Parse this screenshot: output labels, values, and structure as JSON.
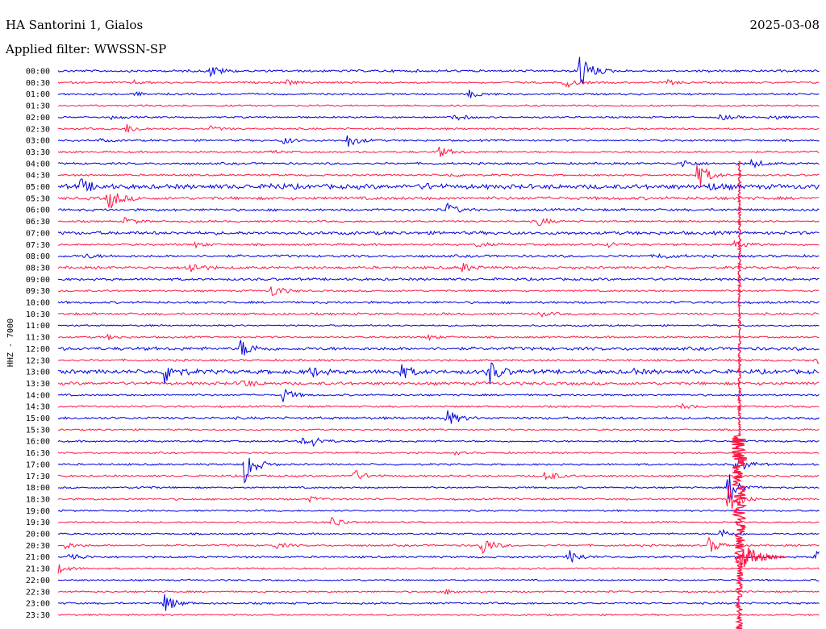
{
  "header": {
    "station": "HA Santorini 1, Gialos",
    "date": "2025-03-08",
    "filter": "Applied filter: WWSSN-SP"
  },
  "colors": {
    "blue": "#0000e0",
    "red": "#ff1744"
  },
  "chart_data": {
    "type": "helicorder",
    "ylabel": "HHZ - 7000",
    "rows": [
      {
        "time": "00:00",
        "color": "blue",
        "noise": 1.2,
        "events": [
          {
            "t": 0.2,
            "a": 8
          },
          {
            "t": 0.685,
            "a": 26
          }
        ]
      },
      {
        "time": "00:30",
        "color": "red",
        "noise": 1.0,
        "events": [
          {
            "t": 0.1,
            "a": 2
          },
          {
            "t": 0.3,
            "a": 3
          },
          {
            "t": 0.665,
            "a": 7
          },
          {
            "t": 0.8,
            "a": 3
          }
        ]
      },
      {
        "time": "01:00",
        "color": "blue",
        "noise": 1.0,
        "events": [
          {
            "t": 0.1,
            "a": 2
          },
          {
            "t": 0.54,
            "a": 5
          }
        ]
      },
      {
        "time": "01:30",
        "color": "red",
        "noise": 0.9,
        "events": []
      },
      {
        "time": "02:00",
        "color": "blue",
        "noise": 0.9,
        "events": [
          {
            "t": 0.07,
            "a": 2
          },
          {
            "t": 0.52,
            "a": 2
          },
          {
            "t": 0.52,
            "a": 3
          },
          {
            "t": 0.87,
            "a": 4
          },
          {
            "t": 0.935,
            "a": 4
          }
        ]
      },
      {
        "time": "02:30",
        "color": "red",
        "noise": 1.0,
        "events": [
          {
            "t": 0.09,
            "a": 6
          },
          {
            "t": 0.2,
            "a": 3
          }
        ]
      },
      {
        "time": "03:00",
        "color": "blue",
        "noise": 1.0,
        "events": [
          {
            "t": 0.055,
            "a": 2
          },
          {
            "t": 0.295,
            "a": 5
          },
          {
            "t": 0.38,
            "a": 9
          }
        ]
      },
      {
        "time": "03:30",
        "color": "red",
        "noise": 1.0,
        "events": [
          {
            "t": 0.5,
            "a": 7
          },
          {
            "t": 0.28,
            "a": 2
          }
        ]
      },
      {
        "time": "04:00",
        "color": "blue",
        "noise": 1.1,
        "events": [
          {
            "t": 0.82,
            "a": 5
          },
          {
            "t": 0.91,
            "a": 6
          }
        ]
      },
      {
        "time": "04:30",
        "color": "red",
        "noise": 1.0,
        "events": [
          {
            "t": 0.515,
            "a": 2
          },
          {
            "t": 0.84,
            "a": 18
          }
        ]
      },
      {
        "time": "05:00",
        "color": "blue",
        "noise": 2.4,
        "events": [
          {
            "t": 0.03,
            "a": 9
          },
          {
            "t": 0.28,
            "a": 3
          },
          {
            "t": 0.48,
            "a": 3
          },
          {
            "t": 0.855,
            "a": 4
          }
        ]
      },
      {
        "time": "05:30",
        "color": "red",
        "noise": 1.6,
        "events": [
          {
            "t": 0.065,
            "a": 16
          }
        ]
      },
      {
        "time": "06:00",
        "color": "blue",
        "noise": 1.3,
        "events": [
          {
            "t": 0.51,
            "a": 8
          }
        ]
      },
      {
        "time": "06:30",
        "color": "red",
        "noise": 1.0,
        "events": [
          {
            "t": 0.088,
            "a": 5
          },
          {
            "t": 0.63,
            "a": 6
          }
        ]
      },
      {
        "time": "07:00",
        "color": "blue",
        "noise": 1.7,
        "events": []
      },
      {
        "time": "07:30",
        "color": "red",
        "noise": 1.1,
        "events": [
          {
            "t": 0.18,
            "a": 3
          },
          {
            "t": 0.55,
            "a": 3
          },
          {
            "t": 0.72,
            "a": 4
          },
          {
            "t": 0.89,
            "a": 7
          }
        ]
      },
      {
        "time": "08:00",
        "color": "blue",
        "noise": 1.3,
        "events": [
          {
            "t": 0.035,
            "a": 3
          },
          {
            "t": 0.79,
            "a": 4
          }
        ]
      },
      {
        "time": "08:30",
        "color": "red",
        "noise": 1.4,
        "events": [
          {
            "t": 0.17,
            "a": 10
          },
          {
            "t": 0.53,
            "a": 6
          }
        ]
      },
      {
        "time": "09:00",
        "color": "blue",
        "noise": 1.3,
        "events": []
      },
      {
        "time": "09:30",
        "color": "red",
        "noise": 1.0,
        "events": [
          {
            "t": 0.28,
            "a": 9
          }
        ]
      },
      {
        "time": "10:00",
        "color": "blue",
        "noise": 1.2,
        "events": []
      },
      {
        "time": "10:30",
        "color": "red",
        "noise": 1.2,
        "events": [
          {
            "t": 0.63,
            "a": 3
          }
        ]
      },
      {
        "time": "11:00",
        "color": "blue",
        "noise": 0.9,
        "events": []
      },
      {
        "time": "11:30",
        "color": "red",
        "noise": 1.0,
        "events": [
          {
            "t": 0.065,
            "a": 3
          },
          {
            "t": 0.485,
            "a": 3
          }
        ]
      },
      {
        "time": "12:00",
        "color": "blue",
        "noise": 1.7,
        "events": [
          {
            "t": 0.24,
            "a": 12
          }
        ]
      },
      {
        "time": "12:30",
        "color": "red",
        "noise": 1.1,
        "events": [
          {
            "t": 0.995,
            "a": 4
          }
        ]
      },
      {
        "time": "13:00",
        "color": "blue",
        "noise": 2.2,
        "events": [
          {
            "t": 0.14,
            "a": 16
          },
          {
            "t": 0.33,
            "a": 7
          },
          {
            "t": 0.45,
            "a": 9
          },
          {
            "t": 0.565,
            "a": 16
          },
          {
            "t": 0.75,
            "a": 3
          }
        ]
      },
      {
        "time": "13:30",
        "color": "red",
        "noise": 1.6,
        "events": [
          {
            "t": 0.24,
            "a": 6
          }
        ]
      },
      {
        "time": "14:00",
        "color": "blue",
        "noise": 1.0,
        "events": [
          {
            "t": 0.295,
            "a": 9
          }
        ]
      },
      {
        "time": "14:30",
        "color": "red",
        "noise": 1.0,
        "events": [
          {
            "t": 0.82,
            "a": 3
          }
        ]
      },
      {
        "time": "15:00",
        "color": "blue",
        "noise": 1.3,
        "events": [
          {
            "t": 0.51,
            "a": 11
          }
        ]
      },
      {
        "time": "15:30",
        "color": "red",
        "noise": 0.9,
        "events": []
      },
      {
        "time": "16:00",
        "color": "blue",
        "noise": 1.0,
        "events": [
          {
            "t": 0.32,
            "a": 4
          },
          {
            "t": 0.335,
            "a": 5
          }
        ]
      },
      {
        "time": "16:30",
        "color": "red",
        "noise": 0.9,
        "events": [
          {
            "t": 0.52,
            "a": 2
          }
        ]
      },
      {
        "time": "17:00",
        "color": "blue",
        "noise": 1.0,
        "events": [
          {
            "t": 0.245,
            "a": 24
          },
          {
            "t": 0.89,
            "a": 14
          }
        ]
      },
      {
        "time": "17:30",
        "color": "red",
        "noise": 1.0,
        "events": [
          {
            "t": 0.385,
            "a": 10
          },
          {
            "t": 0.64,
            "a": 8
          }
        ]
      },
      {
        "time": "18:00",
        "color": "blue",
        "noise": 0.9,
        "events": [
          {
            "t": 0.105,
            "a": 2
          },
          {
            "t": 0.88,
            "a": 20
          }
        ]
      },
      {
        "time": "18:30",
        "color": "red",
        "noise": 1.0,
        "events": [
          {
            "t": 0.33,
            "a": 3
          },
          {
            "t": 0.88,
            "a": 20
          }
        ]
      },
      {
        "time": "19:00",
        "color": "blue",
        "noise": 0.9,
        "events": []
      },
      {
        "time": "19:30",
        "color": "red",
        "noise": 0.9,
        "events": [
          {
            "t": 0.36,
            "a": 8
          }
        ]
      },
      {
        "time": "20:00",
        "color": "blue",
        "noise": 0.9,
        "events": [
          {
            "t": 0.87,
            "a": 7
          }
        ]
      },
      {
        "time": "20:30",
        "color": "red",
        "noise": 1.0,
        "events": [
          {
            "t": 0.01,
            "a": 4
          },
          {
            "t": 0.285,
            "a": 4
          },
          {
            "t": 0.555,
            "a": 14
          },
          {
            "t": 0.855,
            "a": 10
          }
        ]
      },
      {
        "time": "21:00",
        "color": "blue",
        "noise": 1.0,
        "events": [
          {
            "t": 0.015,
            "a": 6
          },
          {
            "t": 0.67,
            "a": 10
          },
          {
            "t": 0.995,
            "a": 12
          }
        ]
      },
      {
        "time": "21:30",
        "color": "red",
        "noise": 0.9,
        "events": [
          {
            "t": 0.0,
            "a": 6
          }
        ]
      },
      {
        "time": "22:00",
        "color": "blue",
        "noise": 0.9,
        "events": []
      },
      {
        "time": "22:30",
        "color": "red",
        "noise": 0.9,
        "events": [
          {
            "t": 0.51,
            "a": 3
          }
        ]
      },
      {
        "time": "23:00",
        "color": "blue",
        "noise": 1.0,
        "events": [
          {
            "t": 0.14,
            "a": 12
          }
        ]
      },
      {
        "time": "23:30",
        "color": "red",
        "noise": 0.9,
        "events": []
      }
    ],
    "big_event": {
      "row_time": "17:00",
      "t": 0.88,
      "color": "red"
    }
  }
}
